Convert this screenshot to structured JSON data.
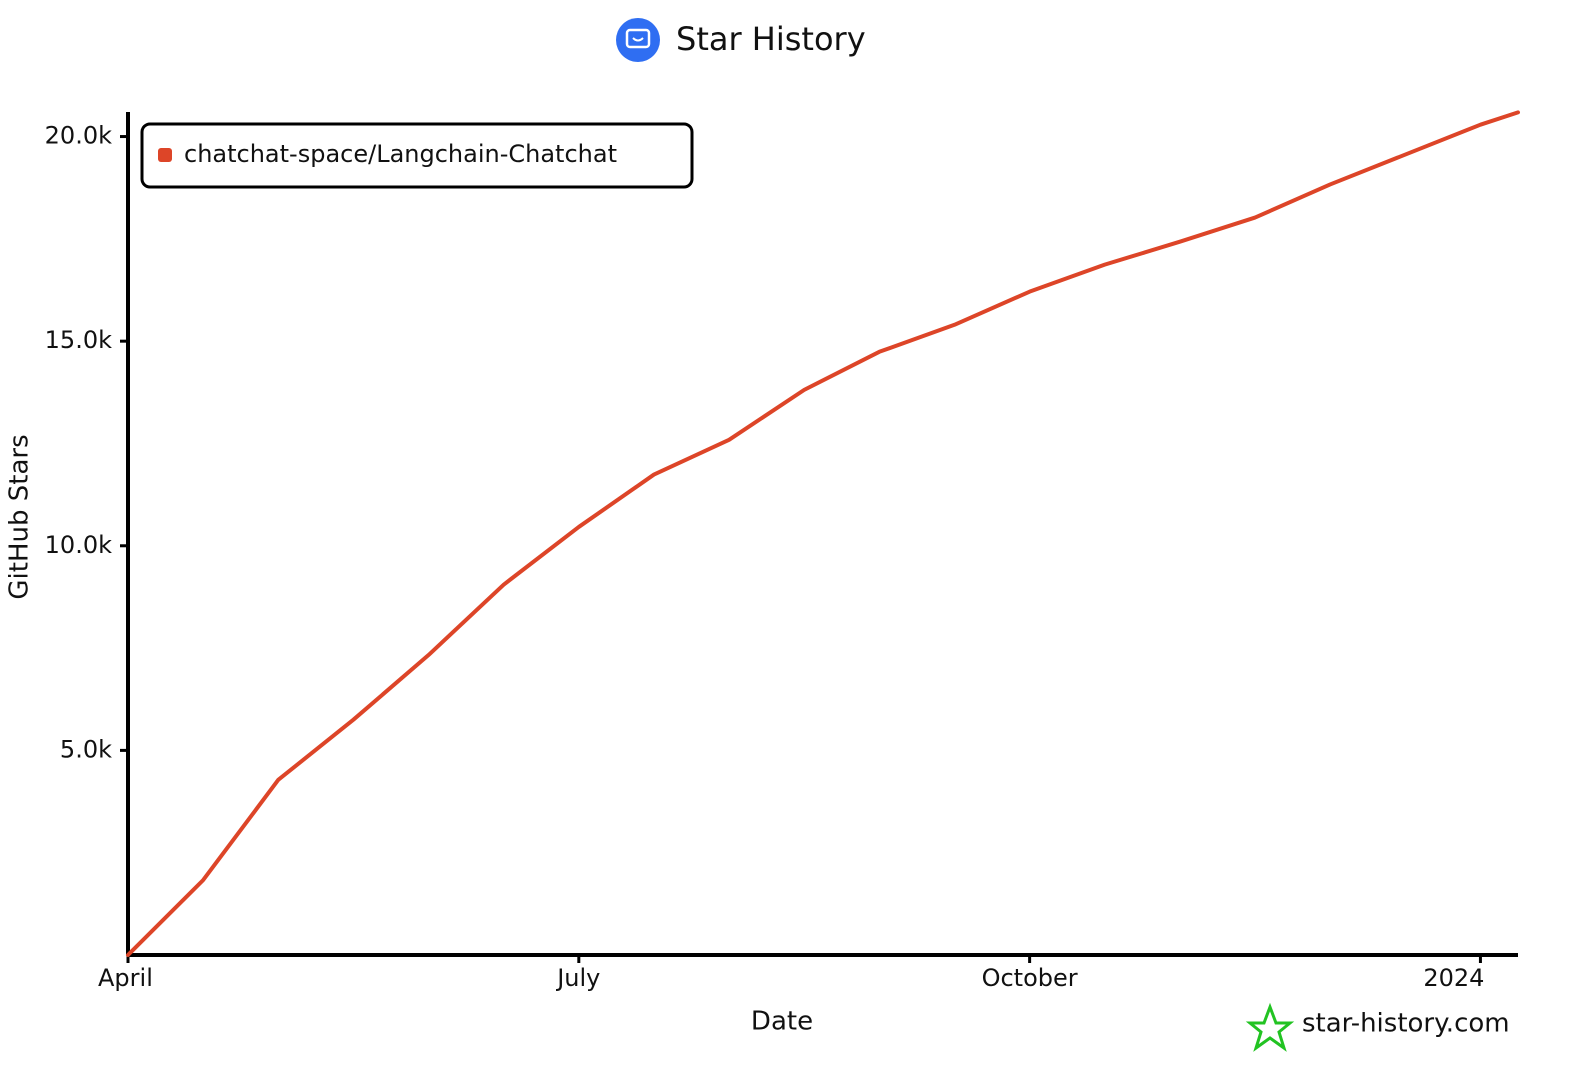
{
  "chart_data": {
    "type": "line",
    "title": "Star History",
    "x_label": "Date",
    "y_label": "GitHub Stars",
    "x": [
      0,
      0.5,
      1,
      1.5,
      2,
      2.5,
      3,
      3.5,
      4,
      4.5,
      5,
      5.5,
      6,
      6.5,
      7,
      7.5,
      8,
      8.5,
      9,
      9.25
    ],
    "series": [
      {
        "name": "chatchat-space/Langchain-Chatchat",
        "color": "#dd4528",
        "values": [
          0,
          1830,
          4280,
          5750,
          7330,
          9050,
          10460,
          11740,
          12590,
          13810,
          14740,
          15400,
          16210,
          16870,
          17430,
          18020,
          18830,
          19560,
          20290,
          20590
        ]
      }
    ],
    "xlim": [
      0,
      9.25
    ],
    "xticks": [
      {
        "value": 0,
        "label": "April"
      },
      {
        "value": 3,
        "label": "July"
      },
      {
        "value": 6,
        "label": "October"
      },
      {
        "value": 9,
        "label": "2024"
      }
    ],
    "ylim": [
      0,
      20600
    ],
    "yticks": [
      {
        "value": 5000,
        "label": "5.0k"
      },
      {
        "value": 10000,
        "label": "10.0k"
      },
      {
        "value": 15000,
        "label": "15.0k"
      },
      {
        "value": 20000,
        "label": "20.0k"
      }
    ],
    "grid": false,
    "legend": "upper left",
    "watermark": "star-history.com"
  }
}
